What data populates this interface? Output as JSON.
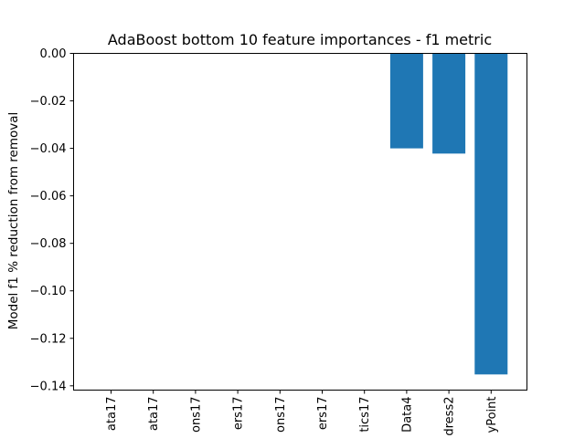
{
  "chart_data": {
    "type": "bar",
    "title": "AdaBoost bottom 10 feature importances - f1 metric",
    "xlabel": "",
    "ylabel": "Model f1 % reduction from removal",
    "categories": [
      "ata17",
      "ata17",
      "ons17",
      "ers17",
      "ons17",
      "ers17",
      "tics17",
      "Data4",
      "dress2",
      "yPoint"
    ],
    "values": [
      0,
      0,
      0,
      0,
      0,
      0,
      0,
      -0.04,
      -0.0422,
      -0.1352
    ],
    "ylim": [
      -0.1418,
      0.0
    ],
    "yticks": [
      0.0,
      -0.02,
      -0.04,
      -0.06,
      -0.08,
      -0.1,
      -0.12,
      -0.14
    ],
    "ytick_labels": [
      "0.00",
      "−0.02",
      "−0.04",
      "−0.06",
      "−0.08",
      "−0.10",
      "−0.12",
      "−0.14"
    ],
    "bar_color": "#1f77b4",
    "grid": false,
    "legend": "none"
  }
}
